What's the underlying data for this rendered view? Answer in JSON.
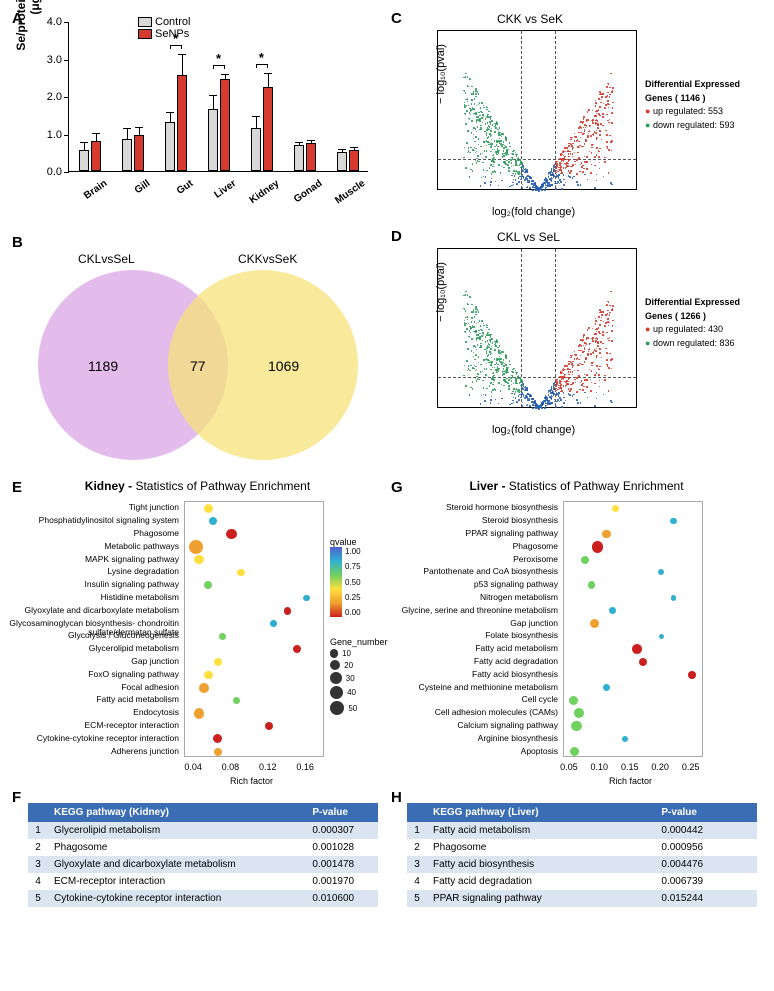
{
  "A": {
    "ylabel": "Se/protein content\n(μg/g)",
    "ylim": [
      0,
      4
    ],
    "ytick_step": 1,
    "ytick_format_decimals": 1,
    "bar_colors": {
      "control": "#d8d8d8",
      "senps": "#d63a2e"
    },
    "categories": [
      "Brain",
      "Gill",
      "Gut",
      "Liver",
      "Kidney",
      "Gonad",
      "Muscle"
    ],
    "legend": [
      "Control",
      "SeNPs"
    ],
    "control": [
      0.55,
      0.85,
      1.3,
      1.65,
      1.15,
      0.7,
      0.5
    ],
    "senps": [
      0.8,
      0.95,
      2.55,
      2.45,
      2.25,
      0.75,
      0.55
    ],
    "control_err": [
      0.2,
      0.28,
      0.25,
      0.35,
      0.3,
      0.06,
      0.06
    ],
    "senps_err": [
      0.18,
      0.2,
      0.55,
      0.1,
      0.35,
      0.06,
      0.07
    ],
    "significant": [
      "Gut",
      "Liver",
      "Kidney"
    ],
    "sig_marker": "*"
  },
  "B": {
    "left_label": "CKLvsSeL",
    "right_label": "CKKvsSeK",
    "left_only": 1189,
    "both": 77,
    "right_only": 1069,
    "left_color": "#d9a6e6",
    "right_color": "#f5e27a",
    "overlap_color": "#d8a86f"
  },
  "C": {
    "title": "CKK vs SeK",
    "xlabel": "log₂(fold change)",
    "ylabel": "− log₁₀(pval)",
    "xlim": [
      -6,
      6
    ],
    "ylim": [
      0,
      18
    ],
    "deg_total": 1146,
    "up": 553,
    "down": 593,
    "legend_title": "Differential Expressed Genes ( 1146 )",
    "colors": {
      "up": "#d63a2e",
      "down": "#2e9e5b",
      "ns": "#2a5fb0"
    },
    "threshold_logfc": 1,
    "threshold_pval_line": 0.2
  },
  "D": {
    "title": "CKL vs SeL",
    "xlabel": "log₂(fold change)",
    "ylabel": "− log₁₀(pval)",
    "xlim": [
      -6,
      6
    ],
    "ylim": [
      0,
      18
    ],
    "deg_total": 1266,
    "up": 430,
    "down": 836,
    "legend_title": "Differential Expressed Genes ( 1266 )",
    "colors": {
      "up": "#d63a2e",
      "down": "#2e9e5b",
      "ns": "#2a5fb0"
    },
    "threshold_logfc": 1,
    "threshold_pval_line": 0.2
  },
  "E": {
    "title_bold": "Kidney - ",
    "title_rest": "Statistics of Pathway Enrichment",
    "xlabel": "Rich factor",
    "xlim": [
      0.03,
      0.18
    ],
    "xticks": [
      0.04,
      0.08,
      0.12,
      0.16
    ],
    "qvalue_range": [
      0,
      1
    ],
    "size_legend": [
      10,
      20,
      30,
      40,
      50
    ],
    "size_legend_label": "Gene_number",
    "color_legend_label": "qvalue",
    "qvalue_colors": {
      "low": "#cc2020",
      "high": "#5060d0"
    },
    "pathways": [
      {
        "name": "Tight junction",
        "rf": 0.055,
        "q": 0.55,
        "n": 15
      },
      {
        "name": "Phosphatidylinositol signaling system",
        "rf": 0.06,
        "q": 0.9,
        "n": 10
      },
      {
        "name": "Phagosome",
        "rf": 0.08,
        "q": 0.05,
        "n": 22
      },
      {
        "name": "Metabolic pathways",
        "rf": 0.042,
        "q": 0.4,
        "n": 52
      },
      {
        "name": "MAPK signaling pathway",
        "rf": 0.045,
        "q": 0.6,
        "n": 18
      },
      {
        "name": "Lysine degradation",
        "rf": 0.09,
        "q": 0.65,
        "n": 8
      },
      {
        "name": "Insulin signaling pathway",
        "rf": 0.055,
        "q": 0.8,
        "n": 10
      },
      {
        "name": "Histidine metabolism",
        "rf": 0.16,
        "q": 0.95,
        "n": 6
      },
      {
        "name": "Glyoxylate and dicarboxylate metabolism",
        "rf": 0.14,
        "q": 0.07,
        "n": 8
      },
      {
        "name": "Glycosaminoglycan biosynthesis- chondroitin sulfate/dermatan sulfate",
        "rf": 0.125,
        "q": 0.92,
        "n": 5
      },
      {
        "name": "Glycolysis / Gluconeogenesis",
        "rf": 0.07,
        "q": 0.75,
        "n": 8
      },
      {
        "name": "Glycerolipid metabolism",
        "rf": 0.15,
        "q": 0.02,
        "n": 10
      },
      {
        "name": "Gap junction",
        "rf": 0.065,
        "q": 0.6,
        "n": 10
      },
      {
        "name": "FoxO signaling pathway",
        "rf": 0.055,
        "q": 0.62,
        "n": 12
      },
      {
        "name": "Focal adhesion",
        "rf": 0.05,
        "q": 0.45,
        "n": 20
      },
      {
        "name": "Fatty acid metabolism",
        "rf": 0.085,
        "q": 0.78,
        "n": 8
      },
      {
        "name": "Endocytosis",
        "rf": 0.045,
        "q": 0.45,
        "n": 24
      },
      {
        "name": "ECM-receptor interaction",
        "rf": 0.12,
        "q": 0.08,
        "n": 14
      },
      {
        "name": "Cytokine-cytokine receptor interaction",
        "rf": 0.065,
        "q": 0.25,
        "n": 16
      },
      {
        "name": "Adherens junction",
        "rf": 0.065,
        "q": 0.5,
        "n": 10
      }
    ]
  },
  "G": {
    "title_bold": "Liver - ",
    "title_rest": "Statistics of Pathway Enrichment",
    "xlabel": "Rich factor",
    "xlim": [
      0.04,
      0.27
    ],
    "xticks": [
      0.05,
      0.1,
      0.15,
      0.2,
      0.25
    ],
    "qvalue_range": [
      0,
      1
    ],
    "pathways": [
      {
        "name": "Steroid hormone biosynthesis",
        "rf": 0.125,
        "q": 0.7,
        "n": 8
      },
      {
        "name": "Steroid biosynthesis",
        "rf": 0.22,
        "q": 0.95,
        "n": 5
      },
      {
        "name": "PPAR signaling pathway",
        "rf": 0.11,
        "q": 0.28,
        "n": 14
      },
      {
        "name": "Phagosome",
        "rf": 0.095,
        "q": 0.04,
        "n": 30
      },
      {
        "name": "Peroxisome",
        "rf": 0.075,
        "q": 0.8,
        "n": 10
      },
      {
        "name": "Pantothenate and CoA biosynthesis",
        "rf": 0.2,
        "q": 0.95,
        "n": 4
      },
      {
        "name": "p53 signaling pathway",
        "rf": 0.085,
        "q": 0.82,
        "n": 8
      },
      {
        "name": "Nitrogen metabolism",
        "rf": 0.22,
        "q": 0.97,
        "n": 3
      },
      {
        "name": "Glycine, serine and threonine metabolism",
        "rf": 0.12,
        "q": 0.92,
        "n": 6
      },
      {
        "name": "Gap junction",
        "rf": 0.09,
        "q": 0.38,
        "n": 16
      },
      {
        "name": "Folate biosynthesis",
        "rf": 0.2,
        "q": 0.97,
        "n": 3
      },
      {
        "name": "Fatty acid metabolism",
        "rf": 0.16,
        "q": 0.03,
        "n": 18
      },
      {
        "name": "Fatty acid degradation",
        "rf": 0.17,
        "q": 0.12,
        "n": 12
      },
      {
        "name": "Fatty acid biosynthesis",
        "rf": 0.25,
        "q": 0.1,
        "n": 8
      },
      {
        "name": "Cysteine and methionine metabolism",
        "rf": 0.11,
        "q": 0.9,
        "n": 6
      },
      {
        "name": "Cell cycle",
        "rf": 0.055,
        "q": 0.82,
        "n": 14
      },
      {
        "name": "Cell adhesion molecules (CAMs)",
        "rf": 0.065,
        "q": 0.75,
        "n": 18
      },
      {
        "name": "Calcium signaling pathway",
        "rf": 0.06,
        "q": 0.72,
        "n": 24
      },
      {
        "name": "Arginine biosynthesis",
        "rf": 0.14,
        "q": 0.97,
        "n": 4
      },
      {
        "name": "Apoptosis",
        "rf": 0.058,
        "q": 0.78,
        "n": 14
      }
    ]
  },
  "F": {
    "header": [
      "",
      "KEGG pathway (Kidney)",
      "P-value"
    ],
    "header_bg": "#3b6db5",
    "row_colors": [
      "#dbe5f1",
      "#ffffff"
    ],
    "rows": [
      [
        "1",
        "Glycerolipid metabolism",
        "0.000307"
      ],
      [
        "2",
        "Phagosome",
        "0.001028"
      ],
      [
        "3",
        "Glyoxylate  and dicarboxylate metabolism",
        "0.001478"
      ],
      [
        "4",
        "ECM-receptor interaction",
        "0.001970"
      ],
      [
        "5",
        "Cytokine-cytokine  receptor interaction",
        "0.010600"
      ]
    ]
  },
  "H": {
    "header": [
      "",
      "KEGG pathway (Liver)",
      "P-value"
    ],
    "rows": [
      [
        "1",
        "Fatty acid metabolism",
        "0.000442"
      ],
      [
        "2",
        "Phagosome",
        "0.000956"
      ],
      [
        "3",
        "Fatty acid biosynthesis",
        "0.004476"
      ],
      [
        "4",
        "Fatty acid degradation",
        "0.006739"
      ],
      [
        "5",
        "PPAR signaling pathway",
        "0.015244"
      ]
    ]
  }
}
